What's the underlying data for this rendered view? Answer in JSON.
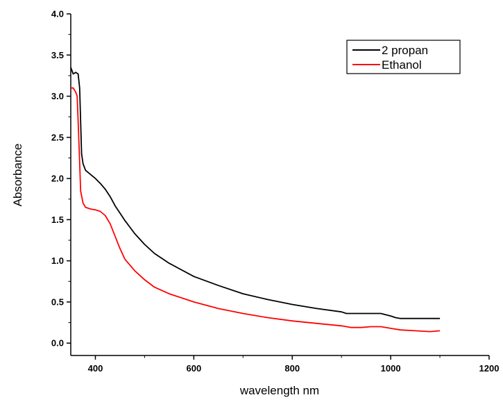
{
  "chart_data": {
    "type": "line",
    "title": "",
    "xlabel": "wavelength nm",
    "ylabel": "Absorbance",
    "xlim": [
      350,
      1200
    ],
    "ylim": [
      -0.15,
      4.0
    ],
    "x_ticks": [
      400,
      600,
      800,
      1000,
      1200
    ],
    "y_ticks": [
      0.0,
      0.5,
      1.0,
      1.5,
      2.0,
      2.5,
      3.0,
      3.5,
      4.0
    ],
    "x_tick_labels": [
      "400",
      "600",
      "800",
      "1000",
      "1200"
    ],
    "y_tick_labels": [
      "0.0",
      "0.5",
      "1.0",
      "1.5",
      "2.0",
      "2.5",
      "3.0",
      "3.5",
      "4.0"
    ],
    "grid": false,
    "legend_position": "top-right",
    "series": [
      {
        "name": "2 propan",
        "color": "#000000",
        "x": [
          350,
          355,
          360,
          365,
          368,
          370,
          372,
          375,
          380,
          390,
          400,
          410,
          420,
          430,
          440,
          450,
          460,
          480,
          500,
          520,
          550,
          600,
          650,
          700,
          750,
          800,
          850,
          900,
          910,
          920,
          940,
          960,
          980,
          1000,
          1010,
          1020,
          1050,
          1080,
          1100
        ],
        "y": [
          3.35,
          3.27,
          3.29,
          3.27,
          3.1,
          2.7,
          2.3,
          2.18,
          2.1,
          2.05,
          2.0,
          1.94,
          1.87,
          1.78,
          1.67,
          1.58,
          1.49,
          1.33,
          1.2,
          1.09,
          0.97,
          0.81,
          0.7,
          0.6,
          0.53,
          0.47,
          0.42,
          0.38,
          0.36,
          0.36,
          0.36,
          0.36,
          0.36,
          0.33,
          0.31,
          0.3,
          0.3,
          0.3,
          0.3
        ]
      },
      {
        "name": "Ethanol",
        "color": "#ff0000",
        "x": [
          350,
          355,
          360,
          363,
          365,
          368,
          370,
          375,
          380,
          390,
          400,
          410,
          420,
          430,
          440,
          450,
          460,
          480,
          500,
          520,
          550,
          600,
          650,
          700,
          750,
          800,
          850,
          900,
          920,
          940,
          960,
          980,
          1000,
          1020,
          1050,
          1080,
          1100
        ],
        "y": [
          3.1,
          3.1,
          3.05,
          3.0,
          2.7,
          2.2,
          1.85,
          1.7,
          1.65,
          1.63,
          1.62,
          1.6,
          1.55,
          1.45,
          1.3,
          1.15,
          1.02,
          0.88,
          0.77,
          0.68,
          0.6,
          0.5,
          0.42,
          0.36,
          0.31,
          0.27,
          0.24,
          0.21,
          0.19,
          0.19,
          0.2,
          0.2,
          0.18,
          0.16,
          0.15,
          0.14,
          0.15
        ]
      }
    ]
  }
}
